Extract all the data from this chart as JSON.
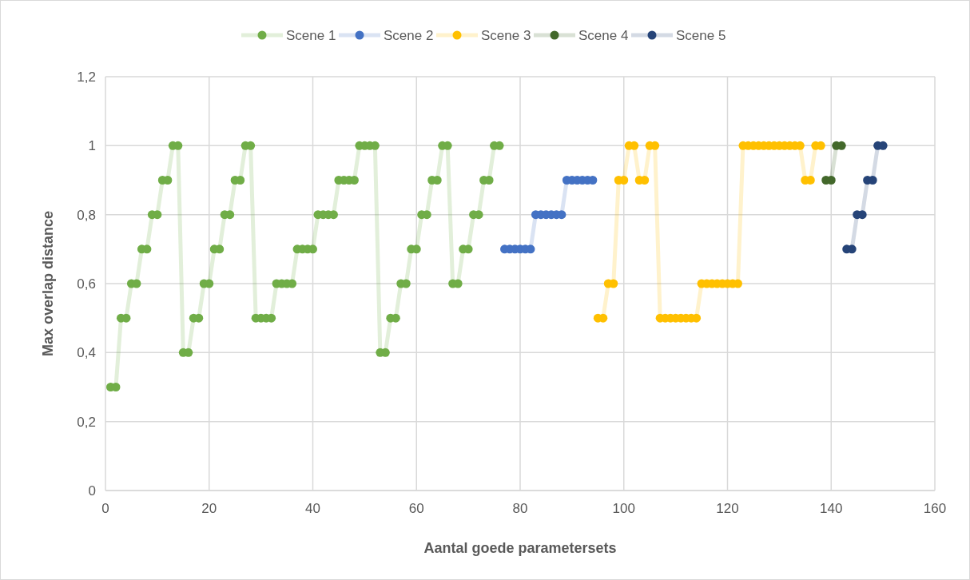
{
  "chart_data": {
    "type": "line",
    "xlabel": "Aantal goede parametersets",
    "ylabel": "Max overlap distance",
    "xlim": [
      0,
      160
    ],
    "xticks": [
      0,
      20,
      40,
      60,
      80,
      100,
      120,
      140,
      160
    ],
    "ylim": [
      0,
      1.2
    ],
    "yticks": [
      0,
      {
        "value": 0.2,
        "label": "0,2"
      },
      {
        "value": 0.4,
        "label": "0,4"
      },
      {
        "value": 0.6,
        "label": "0,6"
      },
      {
        "value": 0.8,
        "label": "0,8"
      },
      1,
      {
        "value": 1.2,
        "label": "1,2"
      }
    ],
    "grid": true,
    "legend": "top",
    "marker": "circle",
    "series": [
      {
        "name": "Scene 1",
        "color": "#70ad47",
        "x": [
          1,
          2,
          3,
          4,
          5,
          6,
          7,
          8,
          9,
          10,
          11,
          12,
          13,
          14,
          15,
          16,
          17,
          18,
          19,
          20,
          21,
          22,
          23,
          24,
          25,
          26,
          27,
          28,
          29,
          30,
          31,
          32,
          33,
          34,
          35,
          36,
          37,
          38,
          39,
          40,
          41,
          42,
          43,
          44,
          45,
          46,
          47,
          48,
          49,
          50,
          51,
          52,
          53,
          54,
          55,
          56,
          57,
          58,
          59,
          60,
          61,
          62,
          63,
          64,
          65,
          66,
          67,
          68,
          69,
          70,
          71,
          72,
          73,
          74,
          75,
          76
        ],
        "values": [
          0.3,
          0.3,
          0.5,
          0.5,
          0.6,
          0.6,
          0.7,
          0.7,
          0.8,
          0.8,
          0.9,
          0.9,
          1,
          1,
          0.4,
          0.4,
          0.5,
          0.5,
          0.6,
          0.6,
          0.7,
          0.7,
          0.8,
          0.8,
          0.9,
          0.9,
          1,
          1,
          0.5,
          0.5,
          0.5,
          0.5,
          0.6,
          0.6,
          0.6,
          0.6,
          0.7,
          0.7,
          0.7,
          0.7,
          0.8,
          0.8,
          0.8,
          0.8,
          0.9,
          0.9,
          0.9,
          0.9,
          1,
          1,
          1,
          1,
          0.4,
          0.4,
          0.5,
          0.5,
          0.6,
          0.6,
          0.7,
          0.7,
          0.8,
          0.8,
          0.9,
          0.9,
          1,
          1,
          0.6,
          0.6,
          0.7,
          0.7,
          0.8,
          0.8,
          0.9,
          0.9,
          1,
          1
        ]
      },
      {
        "name": "Scene 2",
        "color": "#4472c4",
        "x": [
          77,
          78,
          79,
          80,
          81,
          82,
          83,
          84,
          85,
          86,
          87,
          88,
          89,
          90,
          91,
          92,
          93,
          94
        ],
        "values": [
          0.7,
          0.7,
          0.7,
          0.7,
          0.7,
          0.7,
          0.8,
          0.8,
          0.8,
          0.8,
          0.8,
          0.8,
          0.9,
          0.9,
          0.9,
          0.9,
          0.9,
          0.9
        ]
      },
      {
        "name": "Scene 3",
        "color": "#ffc000",
        "x": [
          95,
          96,
          97,
          98,
          99,
          100,
          101,
          102,
          103,
          104,
          105,
          106,
          107,
          108,
          109,
          110,
          111,
          112,
          113,
          114,
          115,
          116,
          117,
          118,
          119,
          120,
          121,
          122,
          123,
          124,
          125,
          126,
          127,
          128,
          129,
          130,
          131,
          132,
          133,
          134,
          135,
          136,
          137,
          138
        ],
        "values": [
          0.5,
          0.5,
          0.6,
          0.6,
          0.9,
          0.9,
          1,
          1,
          0.9,
          0.9,
          1,
          1,
          0.5,
          0.5,
          0.5,
          0.5,
          0.5,
          0.5,
          0.5,
          0.5,
          0.6,
          0.6,
          0.6,
          0.6,
          0.6,
          0.6,
          0.6,
          0.6,
          1,
          1,
          1,
          1,
          1,
          1,
          1,
          1,
          1,
          1,
          1,
          1,
          0.9,
          0.9,
          1,
          1
        ]
      },
      {
        "name": "Scene 4",
        "color": "#43682b",
        "x": [
          139,
          140,
          141,
          142
        ],
        "values": [
          0.9,
          0.9,
          1,
          1
        ]
      },
      {
        "name": "Scene 5",
        "color": "#264478",
        "x": [
          143,
          144,
          145,
          146,
          147,
          148,
          149,
          150
        ],
        "values": [
          0.7,
          0.7,
          0.8,
          0.8,
          0.9,
          0.9,
          1,
          1
        ]
      }
    ]
  }
}
